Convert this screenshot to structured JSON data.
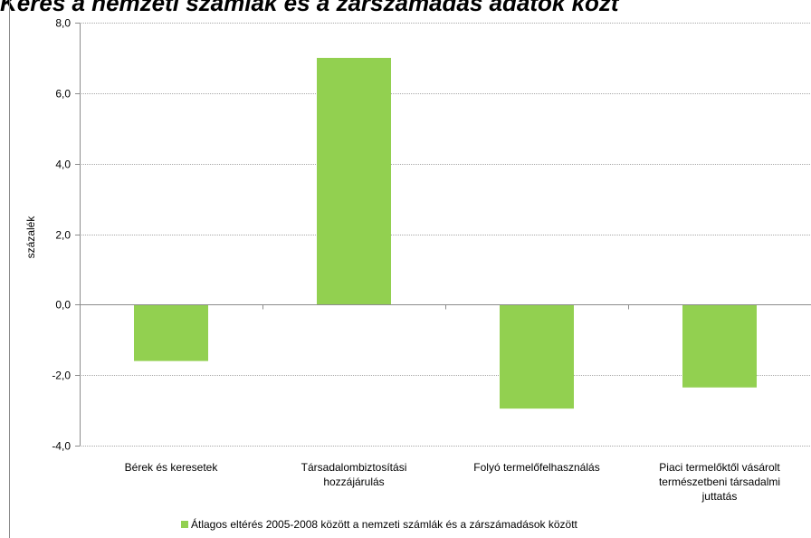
{
  "title": "Keres a nemzeti számlák és a zárszámadás adatok közt",
  "chart_data": {
    "type": "bar",
    "categories": [
      [
        "Bérek és keresetek"
      ],
      [
        "Társadalombiztosítási",
        "hozzájárulás"
      ],
      [
        "Folyó termelőfelhasználás"
      ],
      [
        "Piaci termelőktől vásárolt",
        "természetbeni társadalmi",
        "juttatás"
      ]
    ],
    "series": [
      {
        "name": "Átlagos eltérés 2005-2008 között a nemzeti számlák és a zárszámadások között",
        "values": [
          -1.6,
          7.0,
          -2.95,
          -2.35
        ],
        "color": "#92d050"
      }
    ],
    "ylabel": "százalék",
    "ylim": [
      -4.0,
      8.0
    ],
    "yticks": [
      "8,0",
      "6,0",
      "4,0",
      "2,0",
      "0,0",
      "-2,0",
      "-4,0"
    ],
    "ytick_values": [
      8,
      6,
      4,
      2,
      0,
      -2,
      -4
    ],
    "grid": true,
    "legend_position": "bottom"
  }
}
